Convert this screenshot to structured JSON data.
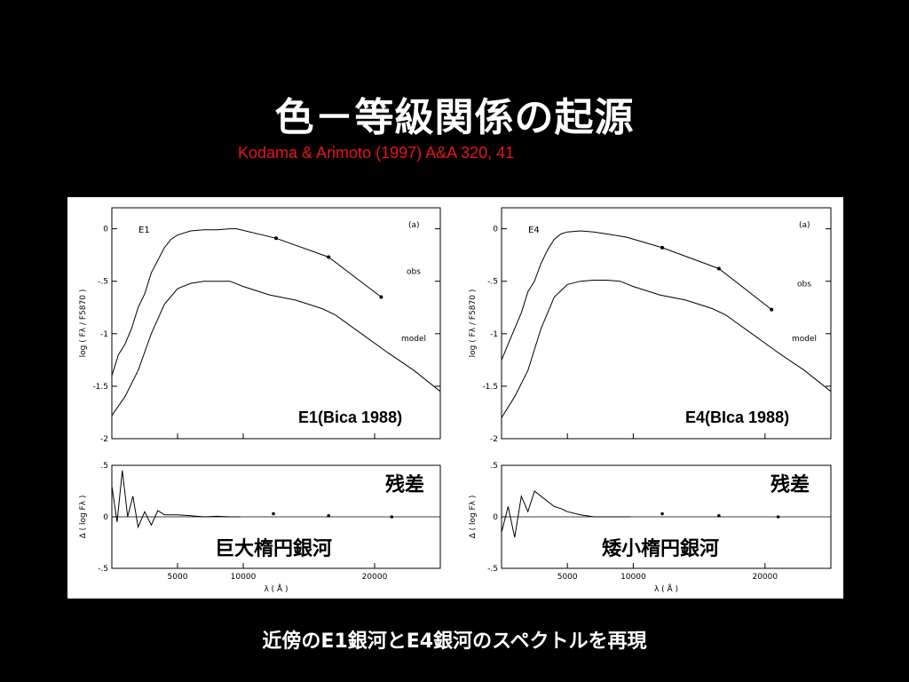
{
  "slide": {
    "title": "色－等級関係の起源",
    "reference": "Kodama & Arimoto (1997) A&A 320, 41",
    "caption": "近傍のE1銀河とE4銀河のスペクトルを再現"
  },
  "colors": {
    "background": "#000000",
    "title": "#ffffff",
    "reference": "#e8141c",
    "figure_bg": "#ffffff",
    "ink": "#000000"
  },
  "chart_data": [
    {
      "type": "line",
      "panel_label": "E1",
      "corner_label": "(a)",
      "overlay_reference": "E1(Bica 1988)",
      "overlay_label": "巨大楕円銀河",
      "ylabel": "log ( Fλ / F5870 )",
      "xlim": [
        0,
        25000
      ],
      "ylim": [
        -2,
        0.2
      ],
      "yticks": [
        0,
        -0.5,
        -1,
        -1.5,
        -2
      ],
      "ytick_labels": [
        "0",
        "-.5",
        "-1",
        "-1.5",
        "-2"
      ],
      "series": [
        {
          "name": "obs",
          "x": [
            0,
            500,
            1000,
            1500,
            2000,
            2500,
            3000,
            3500,
            4000,
            4500,
            5000,
            6000,
            7000,
            8000,
            9000,
            9500,
            12500,
            16500,
            20500
          ],
          "y": [
            -1.4,
            -1.2,
            -1.1,
            -0.95,
            -0.75,
            -0.62,
            -0.42,
            -0.3,
            -0.18,
            -0.1,
            -0.06,
            -0.02,
            -0.01,
            -0.01,
            0.0,
            0.0,
            -0.09,
            -0.27,
            -0.65
          ]
        },
        {
          "name": "model",
          "x": [
            0,
            1000,
            2000,
            3000,
            4000,
            5000,
            6000,
            7000,
            8000,
            9000,
            10000,
            12000,
            14000,
            16000,
            17000,
            19000,
            21000,
            23000,
            25000
          ],
          "y": [
            -1.78,
            -1.6,
            -1.35,
            -1.0,
            -0.72,
            -0.57,
            -0.52,
            -0.5,
            -0.5,
            -0.5,
            -0.55,
            -0.63,
            -0.68,
            -0.76,
            -0.82,
            -1.0,
            -1.18,
            -1.35,
            -1.55
          ]
        }
      ],
      "residual": {
        "ylabel": "Δ ( log Fλ )",
        "xlabel": "λ ( Å )",
        "overlay_label": "残差",
        "ylim": [
          -0.5,
          0.5
        ],
        "yticks": [
          0.5,
          0,
          -0.5
        ],
        "ytick_labels": [
          ".5",
          "0",
          "-.5"
        ],
        "xticks": [
          5000,
          10000,
          20000
        ],
        "xtick_labels": [
          "5000",
          "10000",
          "20000"
        ],
        "x": [
          0,
          400,
          800,
          1200,
          1600,
          2000,
          2500,
          3000,
          3500,
          4000,
          5000,
          6000,
          7000,
          8000,
          9000,
          9800
        ],
        "y": [
          0.3,
          -0.05,
          0.45,
          0.0,
          0.2,
          -0.1,
          0.05,
          -0.08,
          0.06,
          0.02,
          0.02,
          0.01,
          0.0,
          0.005,
          0.0,
          0.0
        ],
        "points": [
          {
            "x": 12300,
            "y": 0.03
          },
          {
            "x": 16500,
            "y": 0.01
          },
          {
            "x": 21300,
            "y": 0.0
          }
        ]
      }
    },
    {
      "type": "line",
      "panel_label": "E4",
      "corner_label": "(a)",
      "overlay_reference": "E4(BIca 1988)",
      "overlay_label": "矮小楕円銀河",
      "ylabel": "log ( Fλ / F5870 )",
      "xlim": [
        0,
        25000
      ],
      "ylim": [
        -2,
        0.2
      ],
      "yticks": [
        0,
        -0.5,
        -1,
        -1.5,
        -2
      ],
      "ytick_labels": [
        "0",
        "-.5",
        "-1",
        "-1.5",
        "-2"
      ],
      "series": [
        {
          "name": "obs",
          "x": [
            0,
            500,
            1000,
            1500,
            2000,
            2500,
            3000,
            3500,
            4000,
            4500,
            5000,
            6000,
            7000,
            8000,
            9000,
            9500,
            12200,
            16500,
            20500
          ],
          "y": [
            -1.25,
            -1.1,
            -0.95,
            -0.8,
            -0.6,
            -0.5,
            -0.33,
            -0.2,
            -0.1,
            -0.05,
            -0.03,
            -0.02,
            -0.03,
            -0.05,
            -0.07,
            -0.08,
            -0.18,
            -0.38,
            -0.77
          ]
        },
        {
          "name": "model",
          "x": [
            0,
            1000,
            2000,
            3000,
            4000,
            5000,
            6000,
            7000,
            8000,
            9000,
            10000,
            12000,
            14000,
            16000,
            17000,
            19000,
            21000,
            23000,
            25000
          ],
          "y": [
            -1.8,
            -1.6,
            -1.35,
            -0.95,
            -0.65,
            -0.53,
            -0.5,
            -0.49,
            -0.49,
            -0.5,
            -0.55,
            -0.63,
            -0.68,
            -0.76,
            -0.82,
            -1.0,
            -1.18,
            -1.35,
            -1.55
          ]
        }
      ],
      "residual": {
        "ylabel": "Δ ( log Fλ )",
        "xlabel": "λ ( Å )",
        "overlay_label": "残差",
        "ylim": [
          -0.5,
          0.5
        ],
        "yticks": [
          0.5,
          0,
          -0.5
        ],
        "ytick_labels": [
          ".5",
          "0",
          "-.5"
        ],
        "xticks": [
          5000,
          10000,
          20000
        ],
        "xtick_labels": [
          "5000",
          "10000",
          "20000"
        ],
        "x": [
          0,
          500,
          1000,
          1500,
          2000,
          2500,
          3000,
          3500,
          4000,
          4500,
          5000,
          6000,
          7000,
          8000,
          9000,
          9800
        ],
        "y": [
          -0.15,
          0.1,
          -0.2,
          0.2,
          0.05,
          0.25,
          0.2,
          0.15,
          0.1,
          0.08,
          0.05,
          0.02,
          0.0,
          0.0,
          0.0,
          0.0
        ],
        "points": [
          {
            "x": 12200,
            "y": 0.03
          },
          {
            "x": 16500,
            "y": 0.01
          },
          {
            "x": 21000,
            "y": 0.0
          }
        ]
      }
    }
  ]
}
